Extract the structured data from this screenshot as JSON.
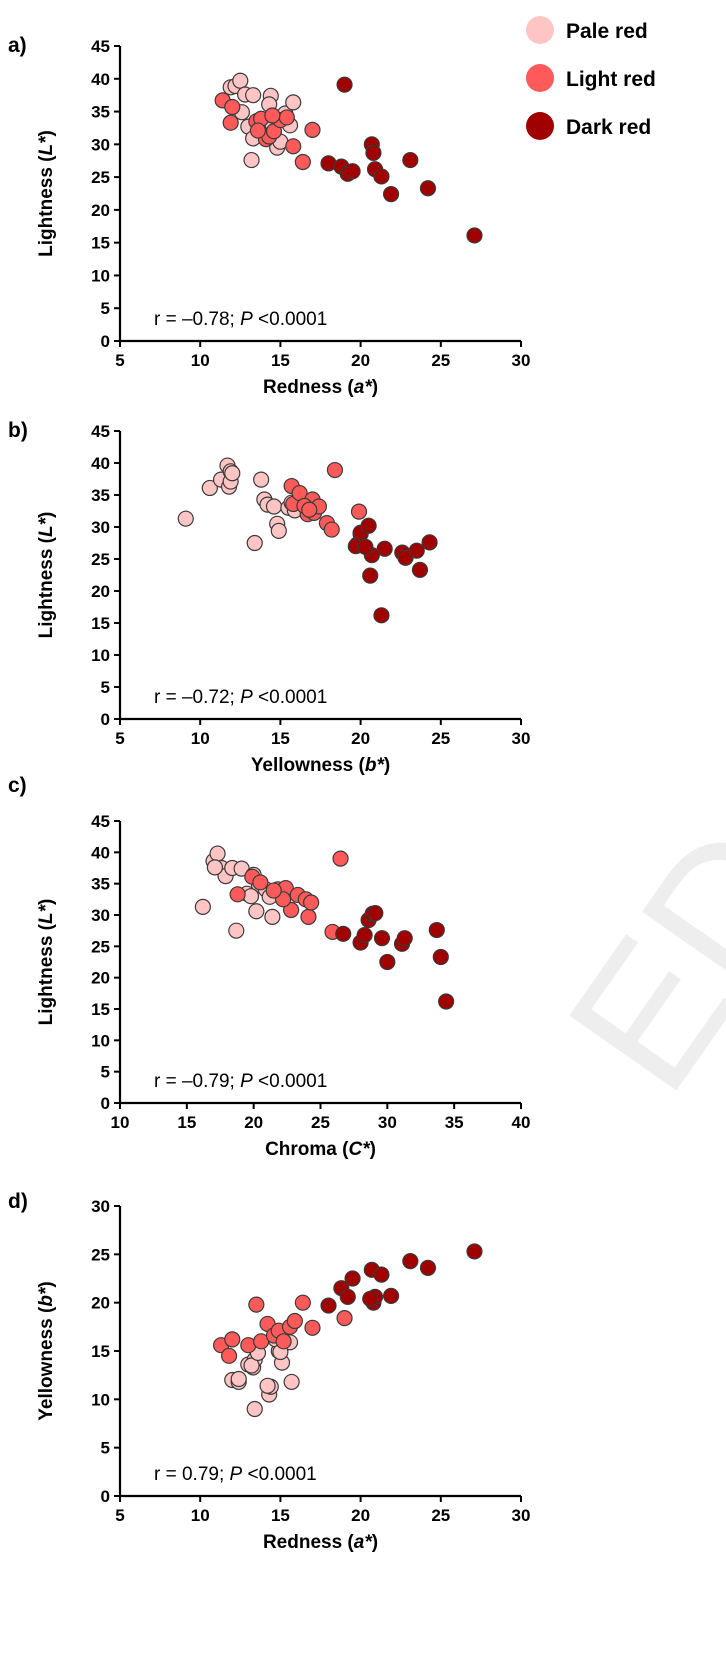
{
  "legend": [
    {
      "label": "Pale red",
      "color": "#FFC4C4"
    },
    {
      "label": "Light red",
      "color": "#FF5A5A"
    },
    {
      "label": "Dark red",
      "color": "#A00000"
    }
  ],
  "watermark": "ED MA",
  "chart_data": [
    {
      "type": "scatter",
      "panel_label": "a)",
      "xlabel": {
        "pre": "Redness (",
        "var": "a*",
        "post": ")"
      },
      "ylabel": {
        "pre": "Lightness (",
        "var": "L*",
        "post": ")"
      },
      "xlim": [
        5,
        30
      ],
      "xticks": [
        5,
        10,
        15,
        20,
        25,
        30
      ],
      "ylim": [
        0,
        45
      ],
      "yticks": [
        0,
        5,
        10,
        15,
        20,
        25,
        30,
        35,
        40,
        45
      ],
      "stat": {
        "pre": "r = –0.78;  ",
        "var": "P",
        "post": " <0.0001"
      },
      "series": [
        {
          "name": "Pale red",
          "points": [
            [
              11.9,
              38.7
            ],
            [
              12.2,
              38.9
            ],
            [
              12.5,
              39.7
            ],
            [
              12.8,
              37.6
            ],
            [
              13.3,
              37.5
            ],
            [
              13.0,
              32.7
            ],
            [
              13.3,
              30.9
            ],
            [
              13.2,
              27.6
            ],
            [
              14.4,
              37.4
            ],
            [
              14.3,
              36.1
            ],
            [
              15.3,
              34.7
            ],
            [
              15.8,
              36.4
            ],
            [
              15.6,
              32.9
            ],
            [
              14.5,
              33.1
            ],
            [
              14.8,
              29.5
            ],
            [
              13.6,
              33.6
            ],
            [
              12.6,
              34.9
            ],
            [
              15.0,
              30.4
            ]
          ]
        },
        {
          "name": "Light red",
          "points": [
            [
              11.4,
              36.7
            ],
            [
              12.0,
              35.7
            ],
            [
              11.9,
              33.3
            ],
            [
              13.5,
              33.5
            ],
            [
              13.8,
              33.9
            ],
            [
              14.1,
              30.8
            ],
            [
              14.3,
              31.2
            ],
            [
              14.6,
              32.0
            ],
            [
              15.0,
              33.7
            ],
            [
              15.4,
              34.1
            ],
            [
              14.5,
              34.4
            ],
            [
              15.8,
              29.7
            ],
            [
              16.4,
              27.3
            ],
            [
              17.0,
              32.2
            ],
            [
              13.6,
              32.1
            ]
          ]
        },
        {
          "name": "Dark red",
          "points": [
            [
              18.0,
              27.1
            ],
            [
              18.8,
              26.6
            ],
            [
              19.2,
              25.5
            ],
            [
              19.5,
              25.9
            ],
            [
              20.7,
              30.0
            ],
            [
              20.8,
              28.7
            ],
            [
              20.9,
              26.2
            ],
            [
              21.3,
              25.1
            ],
            [
              21.9,
              22.4
            ],
            [
              23.1,
              27.6
            ],
            [
              24.2,
              23.3
            ],
            [
              27.1,
              16.1
            ],
            [
              19.0,
              39.1
            ]
          ]
        }
      ]
    },
    {
      "type": "scatter",
      "panel_label": "b)",
      "xlabel": {
        "pre": "Yellowness  (",
        "var": "b*",
        "post": ")"
      },
      "ylabel": {
        "pre": "Lightness (",
        "var": "L*",
        "post": ")"
      },
      "xlim": [
        5,
        30
      ],
      "xticks": [
        5,
        10,
        15,
        20,
        25,
        30
      ],
      "ylim": [
        0,
        45
      ],
      "yticks": [
        0,
        5,
        10,
        15,
        20,
        25,
        30,
        35,
        40,
        45
      ],
      "stat": {
        "pre": "r = –0.72;  ",
        "var": "P",
        "post": " <0.0001"
      },
      "series": [
        {
          "name": "Pale red",
          "points": [
            [
              9.1,
              31.3
            ],
            [
              10.6,
              36.1
            ],
            [
              11.3,
              37.4
            ],
            [
              11.7,
              39.6
            ],
            [
              11.9,
              38.7
            ],
            [
              11.8,
              36.3
            ],
            [
              11.9,
              37.1
            ],
            [
              12.0,
              38.4
            ],
            [
              13.4,
              27.5
            ],
            [
              13.8,
              37.4
            ],
            [
              14.0,
              34.3
            ],
            [
              14.2,
              33.5
            ],
            [
              14.6,
              33.2
            ],
            [
              14.8,
              30.5
            ],
            [
              14.9,
              29.4
            ],
            [
              15.5,
              33.0
            ],
            [
              15.9,
              32.6
            ],
            [
              15.7,
              33.8
            ]
          ]
        },
        {
          "name": "Light red",
          "points": [
            [
              15.7,
              36.4
            ],
            [
              15.8,
              33.6
            ],
            [
              16.2,
              35.3
            ],
            [
              16.7,
              32.0
            ],
            [
              17.0,
              34.3
            ],
            [
              17.1,
              32.2
            ],
            [
              17.4,
              33.2
            ],
            [
              17.9,
              30.6
            ],
            [
              18.2,
              29.6
            ],
            [
              19.9,
              32.4
            ],
            [
              20.0,
              28.9
            ],
            [
              16.5,
              33.3
            ],
            [
              18.4,
              38.9
            ],
            [
              16.8,
              32.7
            ],
            [
              19.8,
              27.3
            ]
          ]
        },
        {
          "name": "Dark red",
          "points": [
            [
              19.7,
              27.0
            ],
            [
              20.0,
              29.1
            ],
            [
              20.5,
              30.2
            ],
            [
              20.7,
              25.6
            ],
            [
              20.6,
              22.4
            ],
            [
              21.3,
              16.2
            ],
            [
              21.5,
              26.6
            ],
            [
              22.6,
              26.0
            ],
            [
              22.8,
              25.2
            ],
            [
              23.5,
              26.3
            ],
            [
              23.7,
              23.3
            ],
            [
              24.3,
              27.6
            ],
            [
              20.3,
              26.9
            ]
          ]
        }
      ]
    },
    {
      "type": "scatter",
      "panel_label": "c)",
      "xlabel": {
        "pre": "Chroma (",
        "var": "C*",
        "post": ")"
      },
      "ylabel": {
        "pre": "Lightness (",
        "var": "L*",
        "post": ")"
      },
      "xlim": [
        10,
        40
      ],
      "xticks": [
        10,
        15,
        20,
        25,
        30,
        35,
        40
      ],
      "ylim": [
        0,
        45
      ],
      "yticks": [
        0,
        5,
        10,
        15,
        20,
        25,
        30,
        35,
        40,
        45
      ],
      "stat": {
        "pre": "r = –0.79;  ",
        "var": "P",
        "post": " <0.0001"
      },
      "series": [
        {
          "name": "Pale red",
          "points": [
            [
              16.2,
              31.3
            ],
            [
              17.0,
              38.6
            ],
            [
              17.3,
              39.8
            ],
            [
              17.6,
              37.5
            ],
            [
              17.9,
              36.2
            ],
            [
              18.4,
              37.5
            ],
            [
              18.7,
              27.5
            ],
            [
              19.1,
              37.4
            ],
            [
              19.5,
              33.4
            ],
            [
              20.0,
              36.4
            ],
            [
              20.4,
              34.8
            ],
            [
              20.2,
              30.6
            ],
            [
              20.9,
              34.1
            ],
            [
              21.4,
              29.7
            ],
            [
              21.2,
              32.9
            ],
            [
              19.8,
              33.0
            ],
            [
              22.6,
              32.8
            ],
            [
              17.1,
              37.6
            ]
          ]
        },
        {
          "name": "Light red",
          "points": [
            [
              18.8,
              33.3
            ],
            [
              19.9,
              36.1
            ],
            [
              20.5,
              35.2
            ],
            [
              21.8,
              34.1
            ],
            [
              22.1,
              33.7
            ],
            [
              22.4,
              34.3
            ],
            [
              22.8,
              30.8
            ],
            [
              23.3,
              33.2
            ],
            [
              23.9,
              32.5
            ],
            [
              24.1,
              29.7
            ],
            [
              24.3,
              32.0
            ],
            [
              25.9,
              27.3
            ],
            [
              26.5,
              39.0
            ],
            [
              22.2,
              32.5
            ],
            [
              21.5,
              33.9
            ]
          ]
        },
        {
          "name": "Dark red",
          "points": [
            [
              26.7,
              27.0
            ],
            [
              28.0,
              25.6
            ],
            [
              28.3,
              26.8
            ],
            [
              28.6,
              29.2
            ],
            [
              28.9,
              30.2
            ],
            [
              29.1,
              30.3
            ],
            [
              29.6,
              26.3
            ],
            [
              30.0,
              22.5
            ],
            [
              31.1,
              25.4
            ],
            [
              31.3,
              26.3
            ],
            [
              33.7,
              27.6
            ],
            [
              34.0,
              23.3
            ],
            [
              34.4,
              16.2
            ]
          ]
        }
      ]
    },
    {
      "type": "scatter",
      "panel_label": "d)",
      "xlabel": {
        "pre": "Redness (",
        "var": "a*",
        "post": ")"
      },
      "ylabel": {
        "pre": "Yellowness (",
        "var": "b*",
        "post": ")"
      },
      "xlim": [
        5,
        30
      ],
      "xticks": [
        5,
        10,
        15,
        20,
        25,
        30
      ],
      "ylim": [
        0,
        30
      ],
      "yticks": [
        0,
        5,
        10,
        15,
        20,
        25,
        30
      ],
      "stat": {
        "pre": "r = 0.79;  ",
        "var": "P",
        "post": " <0.0001"
      },
      "series": [
        {
          "name": "Pale red",
          "points": [
            [
              12.0,
              12.0
            ],
            [
              12.4,
              11.8
            ],
            [
              13.0,
              13.6
            ],
            [
              13.3,
              13.3
            ],
            [
              13.4,
              14.1
            ],
            [
              13.4,
              9.0
            ],
            [
              14.3,
              10.5
            ],
            [
              14.4,
              11.3
            ],
            [
              14.9,
              15.0
            ],
            [
              15.1,
              13.8
            ],
            [
              15.7,
              11.8
            ],
            [
              15.6,
              15.9
            ],
            [
              13.2,
              13.5
            ],
            [
              14.7,
              16.2
            ],
            [
              13.6,
              14.8
            ],
            [
              12.4,
              12.1
            ],
            [
              15.0,
              14.9
            ],
            [
              14.2,
              11.4
            ]
          ]
        },
        {
          "name": "Light red",
          "points": [
            [
              11.3,
              15.6
            ],
            [
              11.8,
              14.5
            ],
            [
              12.0,
              16.2
            ],
            [
              13.0,
              15.6
            ],
            [
              13.5,
              19.8
            ],
            [
              13.8,
              16.0
            ],
            [
              14.2,
              17.8
            ],
            [
              14.6,
              16.6
            ],
            [
              14.9,
              17.1
            ],
            [
              15.2,
              16.0
            ],
            [
              15.6,
              17.5
            ],
            [
              15.9,
              18.1
            ],
            [
              16.4,
              20.0
            ],
            [
              17.0,
              17.4
            ],
            [
              19.0,
              18.4
            ]
          ]
        },
        {
          "name": "Dark red",
          "points": [
            [
              18.0,
              19.7
            ],
            [
              18.8,
              21.5
            ],
            [
              19.2,
              20.6
            ],
            [
              19.5,
              22.5
            ],
            [
              20.7,
              23.4
            ],
            [
              20.8,
              20.0
            ],
            [
              20.9,
              20.6
            ],
            [
              21.3,
              22.9
            ],
            [
              21.9,
              20.7
            ],
            [
              23.1,
              24.3
            ],
            [
              24.2,
              23.6
            ],
            [
              27.1,
              25.3
            ],
            [
              20.6,
              20.4
            ]
          ]
        }
      ]
    }
  ]
}
